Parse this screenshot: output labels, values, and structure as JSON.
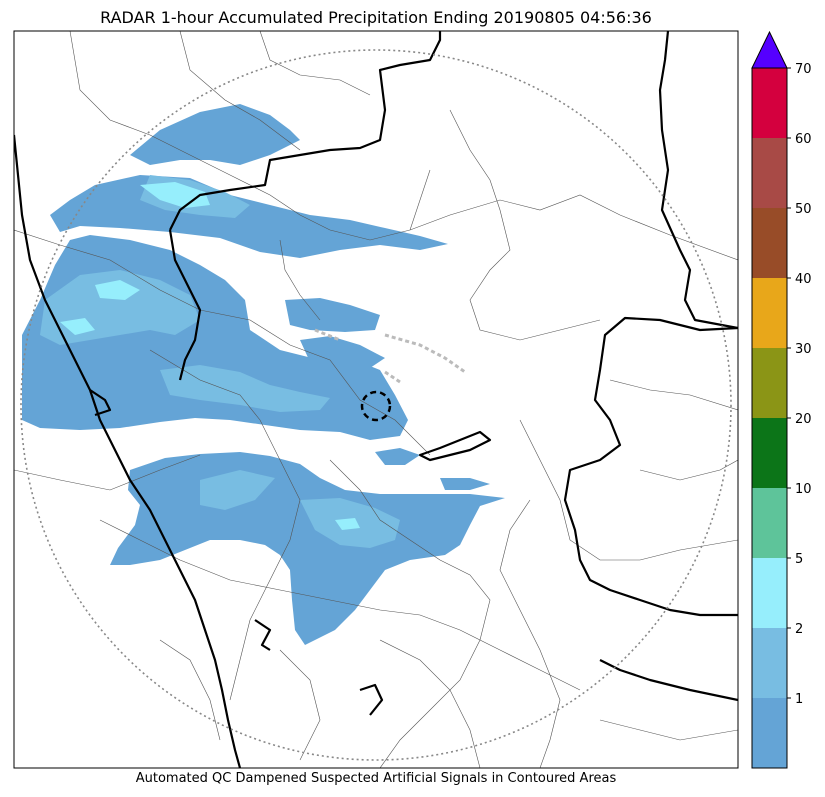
{
  "title": "RADAR 1-hour Accumulated Precipitation Ending 20190805 04:56:36",
  "footnote": "Automated QC Dampened Suspected Artificial Signals in Contoured Areas",
  "colorbar": {
    "extend_color": "#5500ff",
    "bins": [
      {
        "label": "",
        "color": "#64a4d6"
      },
      {
        "label": "1",
        "color": "#78bde2"
      },
      {
        "label": "2",
        "color": "#96eefc"
      },
      {
        "label": "5",
        "color": "#5ec49a"
      },
      {
        "label": "10",
        "color": "#0c7518"
      },
      {
        "label": "20",
        "color": "#8b9516"
      },
      {
        "label": "30",
        "color": "#e8a71a"
      },
      {
        "label": "40",
        "color": "#984c28"
      },
      {
        "label": "50",
        "color": "#a84a46"
      },
      {
        "label": "60",
        "color": "#d4003e"
      }
    ],
    "top_label": "70"
  },
  "map": {
    "colors": {
      "light_rain": "#64a4d6",
      "moderate_rain": "#78bde2",
      "heavy_rain": "#96eefc",
      "range_ring": "#888888",
      "state_border": "#000000",
      "district_border": "#555555",
      "qc_contour": "#bbbbbb"
    }
  }
}
